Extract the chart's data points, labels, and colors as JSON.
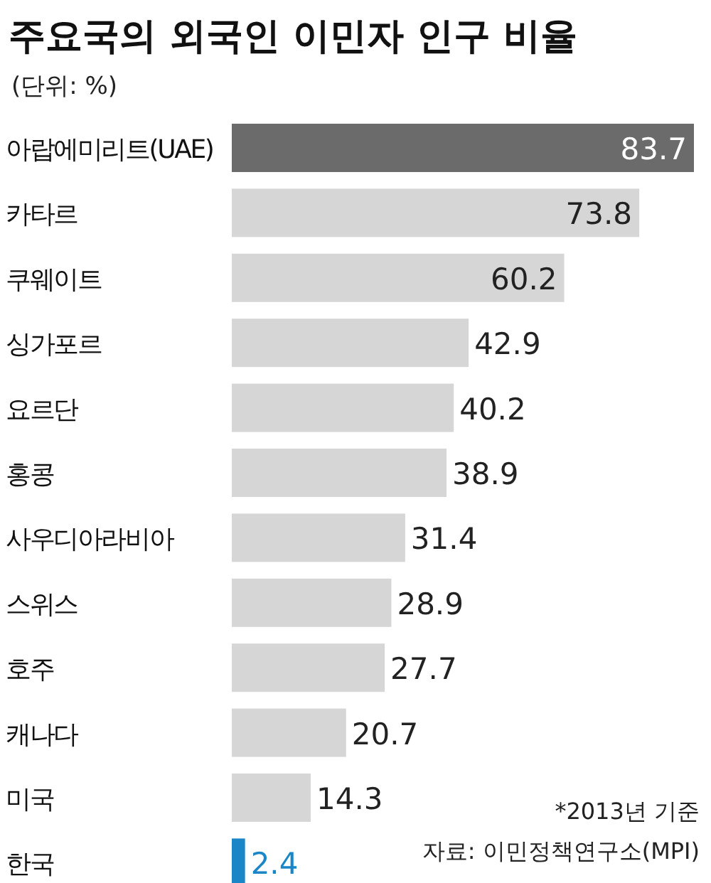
{
  "chart_data": {
    "type": "bar",
    "orientation": "horizontal",
    "title": "주요국의 외국인 이민자 인구 비율",
    "subtitle": "(단위: %)",
    "categories": [
      "아랍에미리트(UAE)",
      "카타르",
      "쿠웨이트",
      "싱가포르",
      "요르단",
      "홍콩",
      "사우디아라비아",
      "스위스",
      "호주",
      "캐나다",
      "미국",
      "한국"
    ],
    "values": [
      83.7,
      73.8,
      60.2,
      42.9,
      40.2,
      38.9,
      31.4,
      28.9,
      27.7,
      20.7,
      14.3,
      2.4
    ],
    "colors": [
      "#6b6b6b",
      "#d6d6d6",
      "#d6d6d6",
      "#d6d6d6",
      "#d6d6d6",
      "#d6d6d6",
      "#d6d6d6",
      "#d6d6d6",
      "#d6d6d6",
      "#d6d6d6",
      "#d6d6d6",
      "#1a86c6"
    ],
    "data_labels": true,
    "annotations": [
      "*2013년 기준",
      "자료: 이민정책연구소(MPI)"
    ]
  }
}
